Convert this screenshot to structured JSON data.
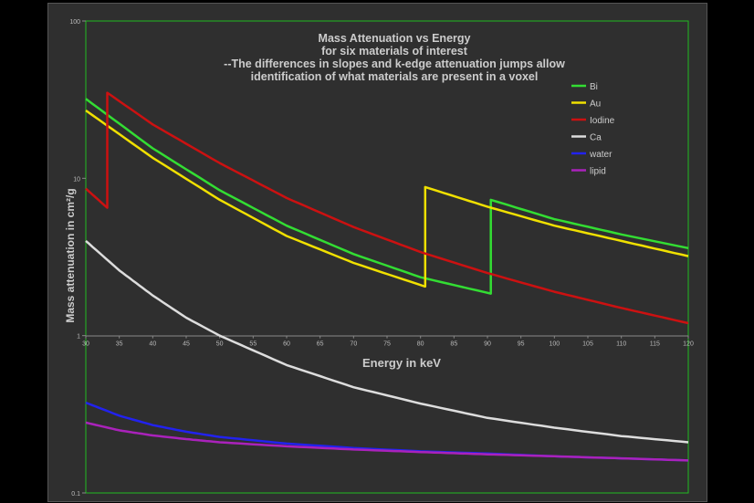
{
  "chart_data": {
    "type": "line",
    "title_lines": [
      "Mass Attenuation vs Energy",
      "for six materials of interest",
      "--The differences in slopes and k-edge attenuation jumps allow",
      "identification of what materials are present in a voxel"
    ],
    "xlabel": "Energy in keV",
    "ylabel": "Mass attenuation in cm²/g",
    "xlim": [
      30,
      120
    ],
    "ylim": [
      0.1,
      100
    ],
    "yscale": "log",
    "x_ticks": [
      "30",
      "35",
      "40",
      "45",
      "50",
      "55",
      "60",
      "65",
      "70",
      "75",
      "80",
      "85",
      "90",
      "95",
      "100",
      "105",
      "110",
      "115",
      "120"
    ],
    "y_ticks": [
      "100",
      "10",
      "1",
      "0.1"
    ],
    "grid": false,
    "legend_position": "top-right",
    "series": [
      {
        "name": "Bi",
        "color": "#33dd33",
        "x": [
          30,
          40,
          50,
          60,
          70,
          80,
          90.5,
          90.5,
          100,
          110,
          120
        ],
        "y": [
          32,
          15.5,
          8.4,
          5.0,
          3.3,
          2.35,
          1.85,
          7.3,
          5.5,
          4.4,
          3.6
        ]
      },
      {
        "name": "Au",
        "color": "#f0e000",
        "x": [
          30,
          40,
          50,
          60,
          70,
          80.7,
          80.7,
          90,
          100,
          110,
          120
        ],
        "y": [
          27,
          13.5,
          7.3,
          4.3,
          2.9,
          2.05,
          8.8,
          6.6,
          5.0,
          4.0,
          3.2
        ]
      },
      {
        "name": "Iodine",
        "color": "#cc1111",
        "x": [
          30,
          33.2,
          33.2,
          40,
          50,
          60,
          70,
          80,
          90,
          100,
          110,
          120
        ],
        "y": [
          8.6,
          6.5,
          35,
          22,
          12.5,
          7.5,
          4.9,
          3.4,
          2.5,
          1.9,
          1.5,
          1.2
        ]
      },
      {
        "name": "Ca",
        "color": "#dddddd",
        "x": [
          30,
          35,
          40,
          45,
          50,
          60,
          70,
          80,
          90,
          100,
          110,
          120
        ],
        "y": [
          4.0,
          2.6,
          1.8,
          1.3,
          1.0,
          0.65,
          0.47,
          0.37,
          0.3,
          0.26,
          0.23,
          0.21
        ]
      },
      {
        "name": "water",
        "color": "#2222ee",
        "x": [
          30,
          35,
          40,
          45,
          50,
          60,
          70,
          80,
          90,
          100,
          110,
          120
        ],
        "y": [
          0.375,
          0.31,
          0.27,
          0.245,
          0.227,
          0.206,
          0.193,
          0.184,
          0.178,
          0.171,
          0.166,
          0.161
        ]
      },
      {
        "name": "lipid",
        "color": "#aa22bb",
        "x": [
          30,
          35,
          40,
          45,
          50,
          60,
          70,
          80,
          90,
          100,
          110,
          120
        ],
        "y": [
          0.28,
          0.25,
          0.232,
          0.22,
          0.21,
          0.198,
          0.189,
          0.182,
          0.176,
          0.171,
          0.166,
          0.161
        ]
      }
    ]
  }
}
